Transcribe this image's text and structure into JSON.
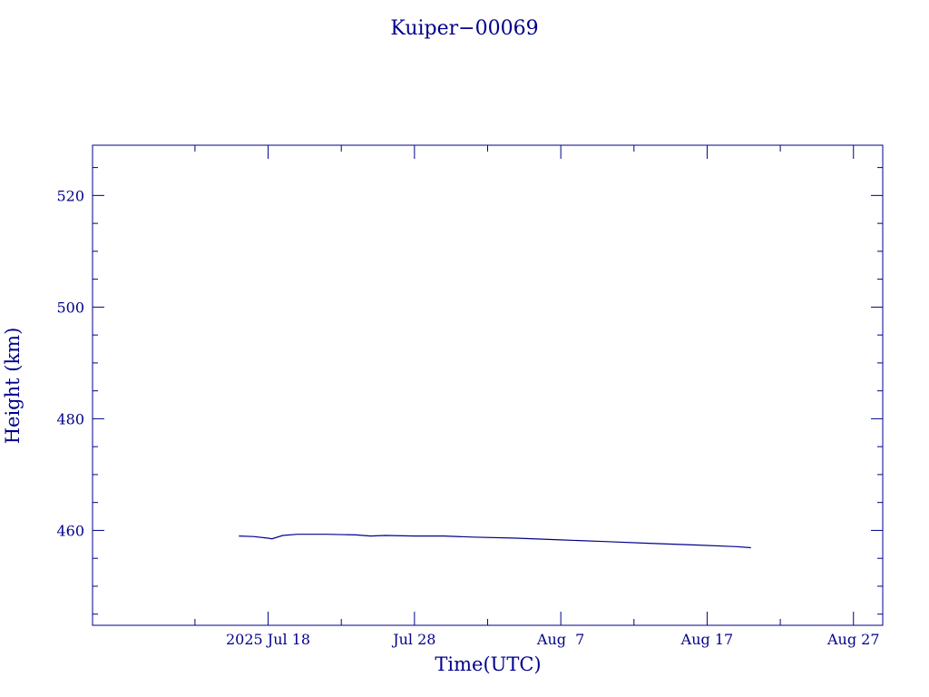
{
  "chart_data": {
    "type": "line",
    "title": "Kuiper−00069",
    "xlabel": "Time(UTC)",
    "ylabel": "Height (km)",
    "x_axis": {
      "type": "date",
      "range": [
        "2025-07-06",
        "2025-08-29"
      ],
      "major_ticks": [
        {
          "date": "2025-07-18",
          "label": "2025 Jul 18"
        },
        {
          "date": "2025-07-28",
          "label": "Jul 28"
        },
        {
          "date": "2025-08-07",
          "label": "Aug  7"
        },
        {
          "date": "2025-08-17",
          "label": "Aug 17"
        },
        {
          "date": "2025-08-27",
          "label": "Aug 27"
        }
      ],
      "minor_ticks": [
        "2025-07-13",
        "2025-07-23",
        "2025-08-02",
        "2025-08-12",
        "2025-08-22"
      ]
    },
    "y_axis": {
      "range": [
        443,
        529
      ],
      "major_ticks": [
        460,
        480,
        500,
        520
      ],
      "minor_tick_step": 5
    },
    "grid": false,
    "series": [
      {
        "color": "#00008b",
        "x": [
          "2025-07-16",
          "2025-07-17",
          "2025-07-18",
          "2025-07-18T06:00",
          "2025-07-19",
          "2025-07-20",
          "2025-07-22",
          "2025-07-24",
          "2025-07-25",
          "2025-07-26",
          "2025-07-28",
          "2025-07-30",
          "2025-08-01",
          "2025-08-04",
          "2025-08-07",
          "2025-08-10",
          "2025-08-13",
          "2025-08-16",
          "2025-08-19",
          "2025-08-20"
        ],
        "y": [
          459.0,
          458.9,
          458.6,
          458.5,
          459.1,
          459.3,
          459.3,
          459.2,
          459.0,
          459.1,
          459.0,
          459.0,
          458.8,
          458.6,
          458.3,
          458.0,
          457.7,
          457.4,
          457.1,
          456.9
        ]
      }
    ]
  }
}
